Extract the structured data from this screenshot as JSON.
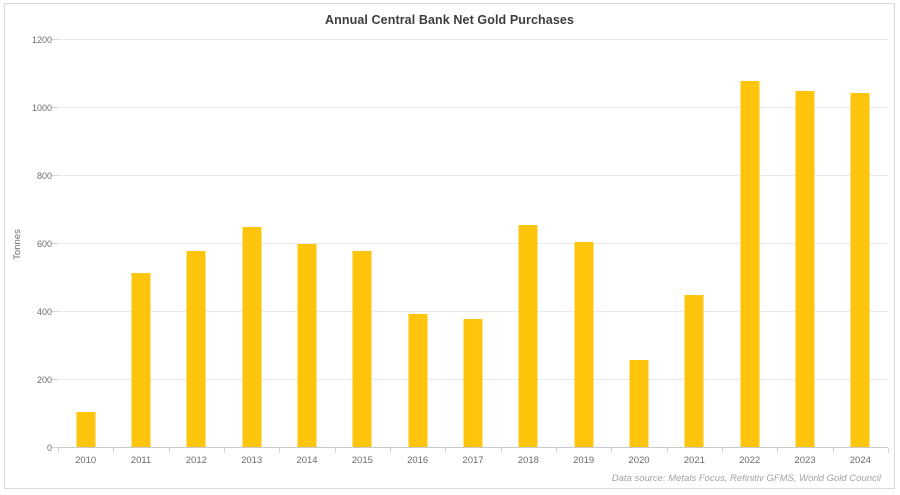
{
  "title": "Annual Central Bank Net Gold Purchases",
  "colors": {
    "bar": "#FFC40C",
    "title_text": "#3D3D3D",
    "tick_text": "#6B6B6B",
    "gridline": "#EAEAEA",
    "axis_line": "#C9C9C9",
    "frame_border": "#D9D9D9",
    "source_text": "#A3A3A3",
    "background": "#FFFFFF"
  },
  "chart_data": {
    "type": "bar",
    "title": "Annual Central Bank Net Gold Purchases",
    "categories": [
      "2010",
      "2011",
      "2012",
      "2013",
      "2014",
      "2015",
      "2016",
      "2017",
      "2018",
      "2019",
      "2020",
      "2021",
      "2022",
      "2023",
      "2024"
    ],
    "values": [
      105,
      515,
      580,
      650,
      600,
      580,
      395,
      380,
      655,
      605,
      260,
      450,
      1080,
      1050,
      1045
    ],
    "xlabel": "",
    "ylabel": "Tonnes",
    "ylim": [
      0,
      1200
    ],
    "yticks": [
      0,
      200,
      400,
      600,
      800,
      1000,
      1200
    ],
    "grid": true,
    "legend": false,
    "bar_color": "#FFC40C",
    "source_note": "Data source: Metals Focus, Refinitiv GFMS, World Gold Council"
  }
}
